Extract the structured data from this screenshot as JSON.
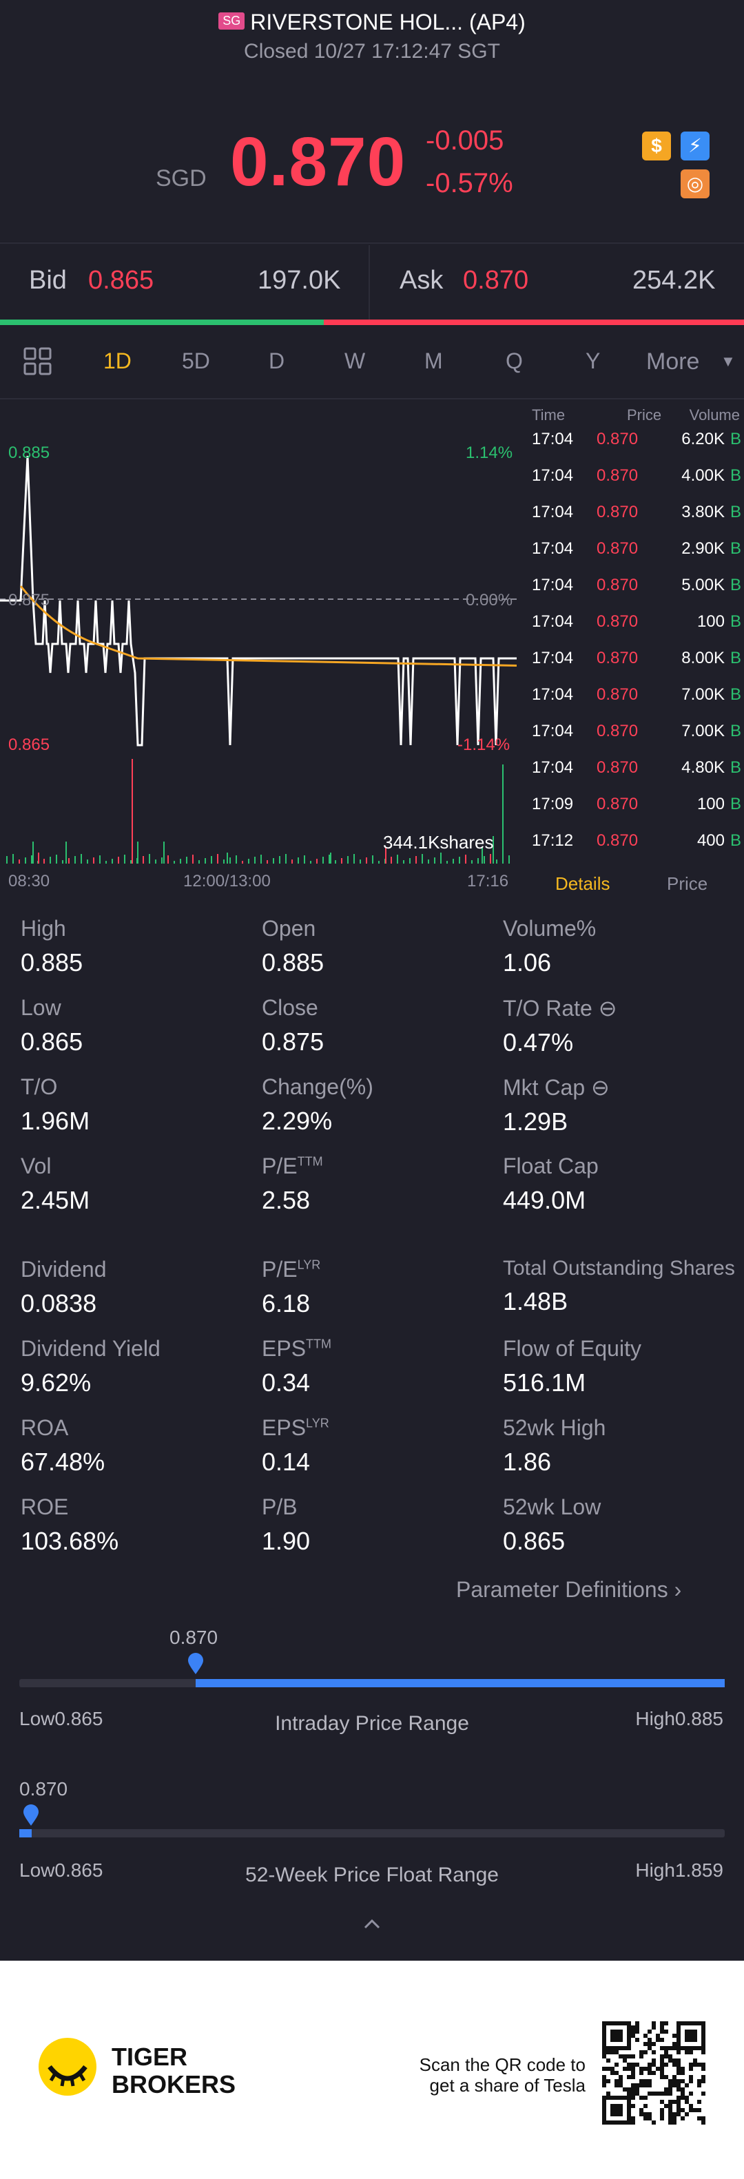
{
  "header": {
    "market_badge": "SG",
    "title": "RIVERSTONE HOL... (AP4)",
    "status": "Closed 10/27 17:12:47 SGT",
    "currency": "SGD",
    "price": "0.870",
    "change": "-0.005",
    "change_pct": "-0.57%",
    "icons": [
      "dollar-icon",
      "lightning-icon",
      "globe-icon"
    ]
  },
  "quote": {
    "bid_label": "Bid",
    "bid_price": "0.865",
    "bid_size": "197.0K",
    "ask_label": "Ask",
    "ask_price": "0.870",
    "ask_size": "254.2K",
    "bid_share": 0.435
  },
  "tabs": {
    "items": [
      "1D",
      "5D",
      "D",
      "W",
      "M",
      "Q",
      "Y",
      "More"
    ],
    "active": "1D"
  },
  "chart": {
    "high_label": "0.885",
    "high_pct": "1.14%",
    "mid_label": "0.875",
    "mid_pct": "0.00%",
    "low_label": "0.865",
    "low_pct": "-1.14%",
    "volume_label": "344.1Kshares",
    "x_start": "08:30",
    "x_mid": "12:00/13:00",
    "x_end": "17:16"
  },
  "chart_data": {
    "type": "line",
    "series": [
      {
        "values": [
          0.875,
          0.885,
          0.875,
          0.872,
          0.87,
          0.87,
          0.87,
          0.87,
          0.87,
          0.87,
          0.87,
          0.87,
          0.87
        ]
      }
    ],
    "ylim": [
      0.865,
      0.885
    ],
    "reference": 0.875
  },
  "trades": {
    "header": {
      "time": "Time",
      "price": "Price",
      "volume": "Volume"
    },
    "rows": [
      {
        "time": "17:04",
        "price": "0.870",
        "vol": "6.20K",
        "side": "B"
      },
      {
        "time": "17:04",
        "price": "0.870",
        "vol": "4.00K",
        "side": "B"
      },
      {
        "time": "17:04",
        "price": "0.870",
        "vol": "3.80K",
        "side": "B"
      },
      {
        "time": "17:04",
        "price": "0.870",
        "vol": "2.90K",
        "side": "B"
      },
      {
        "time": "17:04",
        "price": "0.870",
        "vol": "5.00K",
        "side": "B"
      },
      {
        "time": "17:04",
        "price": "0.870",
        "vol": "100",
        "side": "B"
      },
      {
        "time": "17:04",
        "price": "0.870",
        "vol": "8.00K",
        "side": "B"
      },
      {
        "time": "17:04",
        "price": "0.870",
        "vol": "7.00K",
        "side": "B"
      },
      {
        "time": "17:04",
        "price": "0.870",
        "vol": "7.00K",
        "side": "B"
      },
      {
        "time": "17:04",
        "price": "0.870",
        "vol": "4.80K",
        "side": "B"
      },
      {
        "time": "17:09",
        "price": "0.870",
        "vol": "100",
        "side": "B"
      },
      {
        "time": "17:12",
        "price": "0.870",
        "vol": "400",
        "side": "B"
      }
    ],
    "tab_details": "Details",
    "tab_price": "Price"
  },
  "stats": {
    "high": {
      "label": "High",
      "value": "0.885"
    },
    "open": {
      "label": "Open",
      "value": "0.885"
    },
    "volume_pct": {
      "label": "Volume%",
      "value": "1.06"
    },
    "low": {
      "label": "Low",
      "value": "0.865"
    },
    "close": {
      "label": "Close",
      "value": "0.875"
    },
    "to_rate": {
      "label": "T/O Rate",
      "value": "0.47%"
    },
    "to": {
      "label": "T/O",
      "value": "1.96M"
    },
    "change_pct": {
      "label": "Change(%)",
      "value": "2.29%"
    },
    "mkt_cap": {
      "label": "Mkt Cap",
      "value": "1.29B"
    },
    "vol": {
      "label": "Vol",
      "value": "2.45M"
    },
    "pe_ttm": {
      "label": "P/E",
      "sup": "TTM",
      "value": "2.58"
    },
    "float_cap": {
      "label": "Float Cap",
      "value": "449.0M"
    },
    "dividend": {
      "label": "Dividend",
      "value": "0.0838"
    },
    "pe_lyr": {
      "label": "P/E",
      "sup": "LYR",
      "value": "6.18"
    },
    "total_shares": {
      "label": "Total Outstanding Shares",
      "value": "1.48B"
    },
    "dividend_yield": {
      "label": "Dividend Yield",
      "value": "9.62%"
    },
    "eps_ttm": {
      "label": "EPS",
      "sup": "TTM",
      "value": "0.34"
    },
    "flow_equity": {
      "label": "Flow of Equity",
      "value": "516.1M"
    },
    "roa": {
      "label": "ROA",
      "value": "67.48%"
    },
    "eps_lyr": {
      "label": "EPS",
      "sup": "LYR",
      "value": "0.14"
    },
    "wk52_high": {
      "label": "52wk High",
      "value": "1.86"
    },
    "roe": {
      "label": "ROE",
      "value": "103.68%"
    },
    "pb": {
      "label": "P/B",
      "value": "1.90"
    },
    "wk52_low": {
      "label": "52wk Low",
      "value": "0.865"
    },
    "param_defs": "Parameter Definitions"
  },
  "ranges": {
    "intraday": {
      "current": "0.870",
      "low": "Low0.865",
      "high": "High0.885",
      "title": "Intraday Price Range",
      "position": 0.25
    },
    "week52": {
      "current": "0.870",
      "low": "Low0.865",
      "high": "High1.859",
      "title": "52-Week Price Float Range",
      "position": 0.005
    }
  },
  "footer": {
    "brand_line1": "TIGER",
    "brand_line2": "BROKERS",
    "promo_line1": "Scan the QR code to",
    "promo_line2": "get a share of Tesla"
  },
  "colors": {
    "red": "#ff4057",
    "green": "#2bc06f",
    "accent": "#f5b820",
    "blue": "#3b82f6"
  }
}
